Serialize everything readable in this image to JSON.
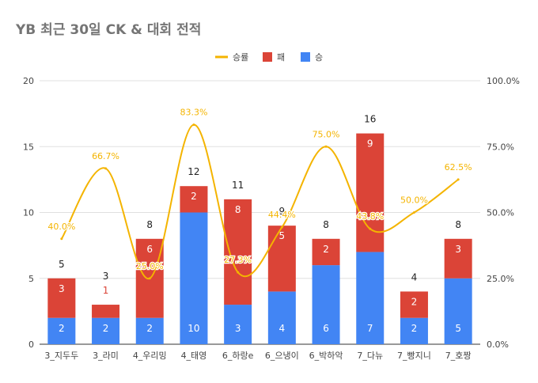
{
  "chart_data": {
    "type": "bar",
    "stacked": true,
    "title": "YB 최근 30일 CK & 대회 전적",
    "categories": [
      "3_지두두",
      "3_라미",
      "4_우리밍",
      "4_태영",
      "6_하랑e",
      "6_으냉이",
      "6_박하악",
      "7_다뉴",
      "7_빵지니",
      "7_호짱"
    ],
    "series": [
      {
        "name": "승",
        "values": [
          2,
          2,
          2,
          10,
          3,
          4,
          6,
          7,
          2,
          5
        ],
        "color": "#4285f4",
        "labels": [
          "2",
          "2",
          "2",
          "10",
          "3",
          "4",
          "6",
          "7",
          "2",
          "5"
        ]
      },
      {
        "name": "패",
        "values": [
          3,
          1,
          6,
          2,
          8,
          5,
          2,
          9,
          2,
          3
        ],
        "color": "#db4437",
        "labels": [
          "3",
          "1",
          "6",
          "2",
          "8",
          "5",
          "2",
          "9",
          "2",
          "3"
        ]
      }
    ],
    "totals": [
      5,
      3,
      8,
      12,
      11,
      9,
      8,
      16,
      4,
      8
    ],
    "total_labels": [
      "5",
      "3",
      "8",
      "12",
      "11",
      "9",
      "8",
      "16",
      "4",
      "8"
    ],
    "line_series": {
      "name": "승률",
      "color": "#f4b400",
      "axis": "right",
      "values": [
        40.0,
        66.7,
        25.0,
        83.3,
        27.3,
        44.4,
        75.0,
        43.8,
        50.0,
        62.5
      ],
      "labels": [
        "40.0%",
        "66.7%",
        "25.0%",
        "83.3%",
        "27.3%",
        "44.4%",
        "75.0%",
        "43.8%",
        "50.0%",
        "62.5%"
      ]
    },
    "legend": {
      "position": "top",
      "items": [
        "승률",
        "패",
        "승"
      ]
    },
    "y_left": {
      "min": 0,
      "max": 20,
      "ticks": [
        0,
        5,
        10,
        15,
        20
      ],
      "tick_labels": [
        "0",
        "5",
        "10",
        "15",
        "20"
      ]
    },
    "y_right": {
      "min": 0,
      "max": 100,
      "ticks": [
        0,
        25,
        50,
        75,
        100
      ],
      "tick_labels": [
        "0.0%",
        "25.0%",
        "50.0%",
        "75.0%",
        "100.0%"
      ]
    },
    "grid": true,
    "title_color": "#757575",
    "grid_color": "#e0e0e0",
    "tick_color": "#444444"
  }
}
